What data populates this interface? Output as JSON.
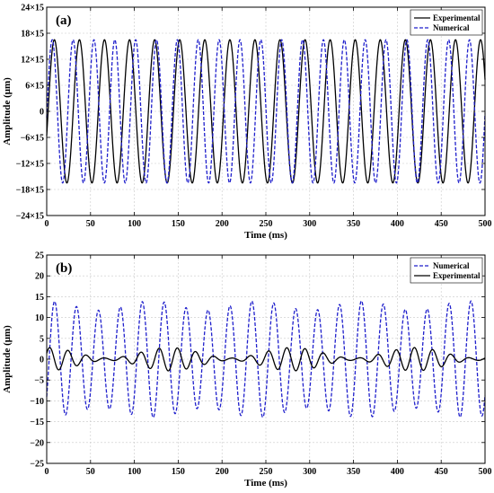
{
  "chart_data": [
    {
      "panel_label": "(a)",
      "type": "line",
      "xlabel": "Time (ms)",
      "ylabel": "Amplitude (μm)",
      "xlim": [
        0,
        500
      ],
      "ylim": [
        -24,
        24
      ],
      "x_ticks": [
        0,
        50,
        100,
        150,
        200,
        250,
        300,
        350,
        400,
        450,
        500
      ],
      "y_ticks": [
        -24,
        -18,
        -12,
        -6,
        0,
        6,
        12,
        18,
        24
      ],
      "y_tick_labels": [
        "−24×15",
        "−18×15",
        "−12×15",
        "−6×15",
        "0",
        "6×15",
        "12×15",
        "18×15",
        "24×15"
      ],
      "grid": true,
      "legend_position": "top-right",
      "series": [
        {
          "name": "Experimental",
          "style": "solid",
          "color": "#000000",
          "amplitude": 16.5,
          "period_ms": 28.6,
          "phase_deg": -20
        },
        {
          "name": "Numerical",
          "style": "dashed",
          "color": "#1f1fcc",
          "amplitude": 16.5,
          "period_ms": 23.8,
          "phase_deg": -5
        }
      ]
    },
    {
      "panel_label": "(b)",
      "type": "line",
      "xlabel": "Time (ms)",
      "ylabel": "Amplitude (μm)",
      "xlim": [
        0,
        500
      ],
      "ylim": [
        -25,
        25
      ],
      "x_ticks": [
        0,
        50,
        100,
        150,
        200,
        250,
        300,
        350,
        400,
        450,
        500
      ],
      "y_ticks": [
        -25,
        -20,
        -15,
        -10,
        -5,
        0,
        5,
        10,
        15,
        20,
        25
      ],
      "y_tick_labels": [
        "−25",
        "−20",
        "−15",
        "−10",
        "−5",
        "0",
        "5",
        "10",
        "15",
        "20",
        "25"
      ],
      "grid": true,
      "legend_position": "top-right",
      "series": [
        {
          "name": "Numerical",
          "style": "dashed",
          "color": "#1f1fcc",
          "amplitude": 14,
          "period_ms": 25.0,
          "phase_deg": -40,
          "mod_depth": 0.08,
          "mod_period_ms": 120
        },
        {
          "name": "Experimental",
          "style": "solid",
          "color": "#000000",
          "amplitude": 2.8,
          "period_ms": 20.8,
          "phase_deg": 30,
          "mod_depth": 0.45,
          "mod_period_ms": 140
        }
      ]
    }
  ]
}
